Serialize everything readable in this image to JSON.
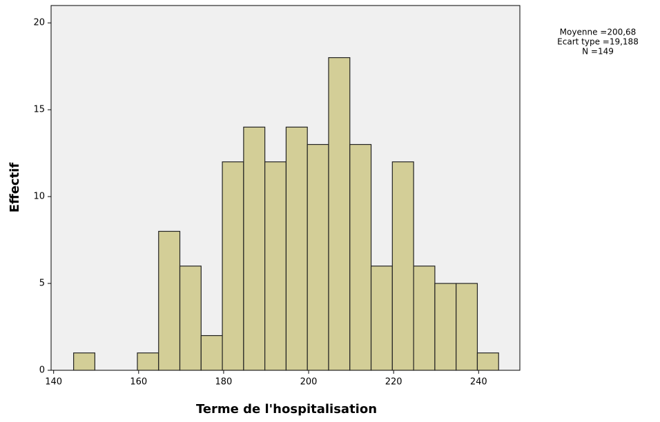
{
  "chart_data": {
    "type": "histogram",
    "x_label": "Terme de l'hospitalisation",
    "y_label": "Effectif",
    "annotations": [
      "Moyenne =200,68",
      "Ecart type =19,188",
      "N =149"
    ],
    "bins": [
      144.7,
      149.7,
      154.7,
      159.7,
      164.7,
      169.7,
      174.7,
      179.7,
      184.7,
      189.7,
      194.7,
      199.7,
      204.7,
      209.7,
      214.7,
      219.7,
      224.7,
      229.7,
      234.7,
      239.7,
      244.7
    ],
    "values": [
      1,
      0,
      0,
      1,
      8,
      6,
      2,
      12,
      14,
      12,
      14,
      13,
      18,
      13,
      6,
      12,
      6,
      5,
      5,
      1
    ],
    "color": "#d3ce97",
    "xlim": [
      139.4,
      249.7
    ],
    "xticks": [
      140,
      160,
      180,
      200,
      220,
      240
    ],
    "ylim": [
      0,
      21
    ],
    "yticks": [
      0,
      5,
      10,
      15,
      20
    ],
    "background": "#f0f0f0"
  }
}
